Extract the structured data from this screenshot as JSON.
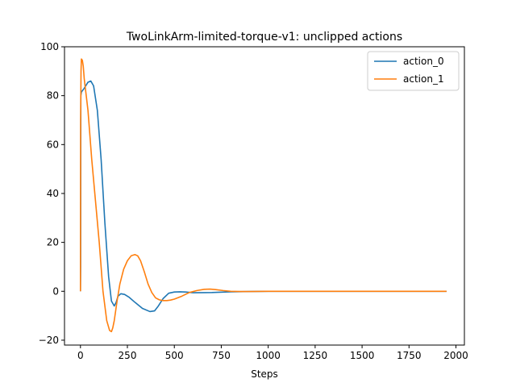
{
  "chart_data": {
    "type": "line",
    "title": "TwoLinkArm-limited-torque-v1: unclipped actions",
    "xlabel": "Steps",
    "ylabel": "",
    "xlim": [
      -85,
      2045
    ],
    "ylim": [
      -22,
      100
    ],
    "xticks": [
      0,
      250,
      500,
      750,
      1000,
      1250,
      1500,
      1750,
      2000
    ],
    "yticks": [
      -20,
      0,
      20,
      40,
      60,
      80,
      100
    ],
    "grid": false,
    "legend_position": "top-right",
    "series": [
      {
        "name": "action_0",
        "color": "#1f77b4",
        "x": [
          0,
          1,
          2,
          5,
          20,
          40,
          55,
          70,
          90,
          110,
          130,
          150,
          165,
          180,
          190,
          200,
          215,
          235,
          260,
          290,
          330,
          370,
          395,
          415,
          440,
          470,
          500,
          530,
          560,
          600,
          700,
          800,
          900,
          1000,
          1200,
          1500,
          1950
        ],
        "y": [
          0,
          10,
          80,
          81.5,
          83,
          85.5,
          86,
          84,
          74,
          54,
          28,
          6,
          -4,
          -6,
          -4.5,
          -2,
          -1,
          -1.3,
          -2.5,
          -4.5,
          -7,
          -8.3,
          -8,
          -6,
          -3,
          -0.8,
          -0.3,
          -0.2,
          -0.3,
          -0.6,
          -0.5,
          -0.2,
          -0.1,
          0,
          0,
          0,
          0
        ]
      },
      {
        "name": "action_1",
        "color": "#ff7f0e",
        "x": [
          0,
          1,
          3,
          5,
          10,
          15,
          20,
          40,
          60,
          80,
          100,
          120,
          140,
          155,
          165,
          172,
          180,
          195,
          210,
          230,
          250,
          270,
          290,
          305,
          320,
          340,
          360,
          380,
          400,
          420,
          440,
          460,
          480,
          500,
          540,
          580,
          620,
          660,
          690,
          720,
          760,
          800,
          850,
          900,
          1000,
          1200,
          1500,
          1950
        ],
        "y": [
          0,
          70,
          90,
          95,
          94.5,
          92,
          87,
          74,
          54,
          37,
          20,
          0,
          -12,
          -16,
          -16.5,
          -15,
          -12,
          -4,
          3,
          9,
          12.5,
          14.5,
          15,
          14.5,
          12.5,
          8,
          3,
          -0.5,
          -2.7,
          -3.5,
          -3.8,
          -3.8,
          -3.6,
          -3.2,
          -2,
          -0.5,
          0.3,
          0.8,
          0.9,
          0.7,
          0.3,
          0,
          -0.1,
          -0.1,
          0,
          0,
          0,
          0
        ]
      }
    ]
  }
}
